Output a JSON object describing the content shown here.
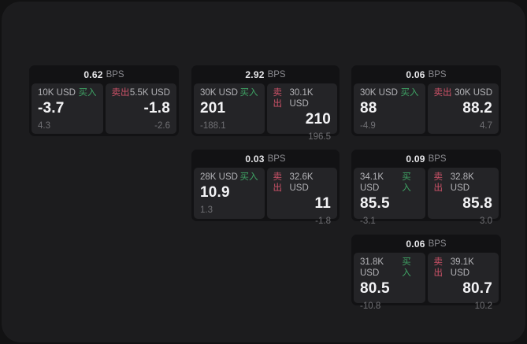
{
  "colors": {
    "buy_green": "#3fa465",
    "sell_red": "#cd5268",
    "panel_bg": "#1c1c1e",
    "card_bg": "#121214",
    "subcard_bg": "#242427"
  },
  "cards": [
    {
      "bps": "0.62",
      "unit": "BPS",
      "buy": {
        "amount": "10K USD",
        "label": "买入",
        "value": "-3.7",
        "delta": "4.3"
      },
      "sell": {
        "label": "卖出",
        "amount": "5.5K USD",
        "value": "-1.8",
        "delta": "-2.6"
      }
    },
    {
      "bps": "2.92",
      "unit": "BPS",
      "buy": {
        "amount": "30K USD",
        "label": "买入",
        "value": "201",
        "delta": "-188.1"
      },
      "sell": {
        "label": "卖出",
        "amount": "30.1K USD",
        "value": "210",
        "delta": "196.5"
      }
    },
    {
      "bps": "0.06",
      "unit": "BPS",
      "buy": {
        "amount": "30K USD",
        "label": "买入",
        "value": "88",
        "delta": "-4.9"
      },
      "sell": {
        "label": "卖出",
        "amount": "30K USD",
        "value": "88.2",
        "delta": "4.7"
      }
    },
    {
      "bps": "0.03",
      "unit": "BPS",
      "buy": {
        "amount": "28K USD",
        "label": "买入",
        "value": "10.9",
        "delta": "1.3"
      },
      "sell": {
        "label": "卖出",
        "amount": "32.6K USD",
        "value": "11",
        "delta": "-1.8"
      }
    },
    {
      "bps": "0.09",
      "unit": "BPS",
      "buy": {
        "amount": "34.1K USD",
        "label": "买入",
        "value": "85.5",
        "delta": "-3.1"
      },
      "sell": {
        "label": "卖出",
        "amount": "32.8K USD",
        "value": "85.8",
        "delta": "3.0"
      }
    },
    {
      "bps": "0.06",
      "unit": "BPS",
      "buy": {
        "amount": "31.8K USD",
        "label": "买入",
        "value": "80.5",
        "delta": "-10.8"
      },
      "sell": {
        "label": "卖出",
        "amount": "39.1K USD",
        "value": "80.7",
        "delta": "10.2"
      }
    }
  ]
}
